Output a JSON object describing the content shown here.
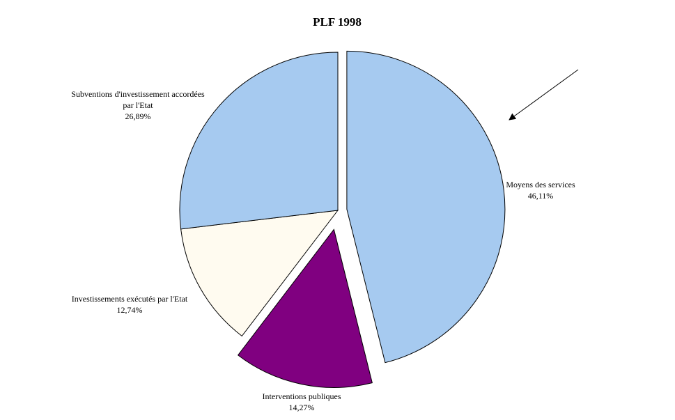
{
  "chart_data": {
    "type": "pie",
    "title": "PLF 1998",
    "slices": [
      {
        "label": "Moyens des services",
        "value": 46.11,
        "value_label": "46,11%",
        "color": "#A6CAF0",
        "exploded": true
      },
      {
        "label": "Interventions publiques",
        "value": 14.27,
        "value_label": "14,27%",
        "color": "#800080",
        "exploded": true
      },
      {
        "label": "Investissements exécutés par l'Etat",
        "value": 12.74,
        "value_label": "12,74%",
        "color": "#FFFBF0",
        "exploded": false
      },
      {
        "label": "Subventions d'investissement accordées par l'Etat",
        "value": 26.89,
        "value_label": "26,89%",
        "color": "#A6CAF0",
        "exploded": false
      }
    ],
    "start_angle": "12 o'clock",
    "direction": "clockwise",
    "annotation": "arrow pointing to Moyens des services"
  }
}
